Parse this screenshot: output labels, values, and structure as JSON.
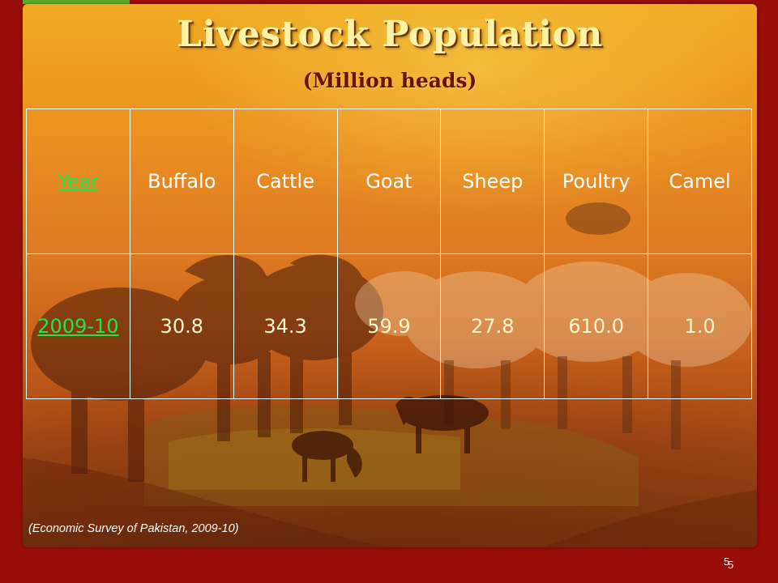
{
  "slide": {
    "title": "Livestock Population",
    "subtitle": "(Million heads)",
    "source": "(Economic Survey of Pakistan, 2009-10)",
    "page_number": "5",
    "page_number_overlay": "5"
  },
  "table": {
    "headers": [
      "Year",
      "Buffalo",
      "Cattle",
      "Goat",
      "Sheep",
      "Poultry",
      "Camel"
    ],
    "rows": [
      [
        "2009-10",
        "30.8",
        "34.3",
        "59.9",
        "27.8",
        "610.0",
        "1.0"
      ]
    ]
  },
  "colors": {
    "frame": "#9a0e0a",
    "accent": "#5fae2a",
    "title_text": "#fff2a6",
    "subtitle_text": "#6a1206",
    "year_link": "#1ee64a",
    "table_border": "#ffffff"
  },
  "background_image": "livestock-collage (buffalo, sheep, grazing cattle)"
}
